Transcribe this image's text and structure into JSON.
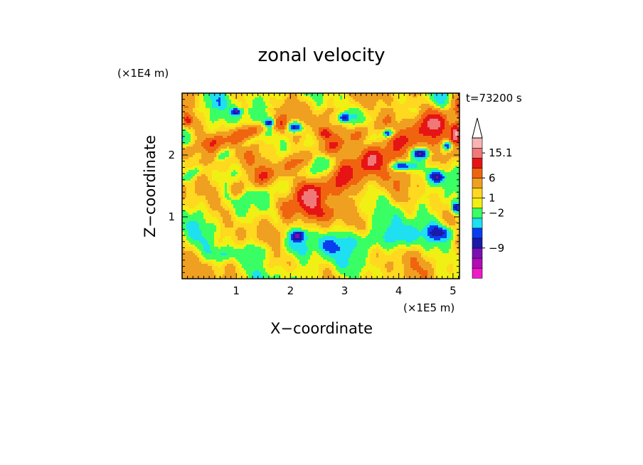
{
  "chart_data": {
    "type": "heatmap",
    "title": "zonal velocity",
    "xlabel": "X−coordinate",
    "ylabel": "Z−coordinate",
    "x_unit": "(×1E5 m)",
    "y_unit": "(×1E4 m)",
    "time_label": "t=73200 s",
    "xlim": [
      0,
      5.12
    ],
    "ylim": [
      0,
      3.0
    ],
    "x_ticks": [
      1,
      2,
      3,
      4,
      5
    ],
    "y_ticks": [
      1,
      2
    ],
    "colorbar": {
      "levels": [
        "#f019c8",
        "#b20cb4",
        "#7a10b4",
        "#1a19a8",
        "#0a3cf0",
        "#1ee0f0",
        "#39ff64",
        "#f0f014",
        "#ffd820",
        "#f0a020",
        "#f06410",
        "#e61414",
        "#f07878",
        "#f8b4b4"
      ],
      "ticks": [
        {
          "label": "15.1",
          "band": 12.5
        },
        {
          "label": "6",
          "band": 10
        },
        {
          "label": "1",
          "band": 8
        },
        {
          "label": "−2",
          "band": 6.5
        },
        {
          "label": "−9",
          "band": 3
        }
      ],
      "extend": "max"
    },
    "features": [
      {
        "type": "band",
        "x0": 2.0,
        "z0": 1.15,
        "x1": 5.1,
        "z1": 2.75,
        "width": 0.22,
        "value": 9
      },
      {
        "type": "band",
        "x0": 1.0,
        "z0": 1.45,
        "x1": 3.8,
        "z1": 2.55,
        "width": 0.14,
        "value": 5
      },
      {
        "type": "band",
        "x0": 0.0,
        "z0": 2.05,
        "x1": 1.8,
        "z1": 2.5,
        "width": 0.12,
        "value": 5
      },
      {
        "type": "band",
        "x0": 1.3,
        "z0": 0.45,
        "x1": 5.1,
        "z1": 0.75,
        "width": 0.18,
        "value": -3
      },
      {
        "type": "band",
        "x0": 0.0,
        "z0": 1.6,
        "x1": 1.6,
        "z1": 2.4,
        "width": 0.08,
        "value": -3
      },
      {
        "type": "blob",
        "x": 2.08,
        "z": 2.45,
        "rx": 0.14,
        "rz": 0.09,
        "value": -8
      },
      {
        "type": "blob",
        "x": 1.62,
        "z": 2.52,
        "rx": 0.1,
        "rz": 0.06,
        "value": -7
      },
      {
        "type": "blob",
        "x": 2.98,
        "z": 2.6,
        "rx": 0.11,
        "rz": 0.08,
        "value": -7
      },
      {
        "type": "blob",
        "x": 4.05,
        "z": 1.82,
        "rx": 0.22,
        "rz": 0.08,
        "value": -7
      },
      {
        "type": "blob",
        "x": 4.4,
        "z": 2.03,
        "rx": 0.17,
        "rz": 0.08,
        "value": -7
      },
      {
        "type": "blob",
        "x": 4.72,
        "z": 1.65,
        "rx": 0.15,
        "rz": 0.1,
        "value": -7
      },
      {
        "type": "blob",
        "x": 4.9,
        "z": 2.15,
        "rx": 0.1,
        "rz": 0.08,
        "value": -7
      },
      {
        "type": "blob",
        "x": 5.05,
        "z": 1.15,
        "rx": 0.07,
        "rz": 0.09,
        "value": -7
      },
      {
        "type": "blob",
        "x": 3.8,
        "z": 2.35,
        "rx": 0.1,
        "rz": 0.06,
        "value": -6
      },
      {
        "type": "blob",
        "x": 2.15,
        "z": 0.7,
        "rx": 0.13,
        "rz": 0.09,
        "value": -7
      },
      {
        "type": "blob",
        "x": 1.0,
        "z": 2.7,
        "rx": 0.08,
        "rz": 0.05,
        "value": -6
      },
      {
        "type": "blob",
        "x": 0.1,
        "z": 2.55,
        "rx": 0.08,
        "rz": 0.1,
        "value": 6
      },
      {
        "type": "blob",
        "x": 5.05,
        "z": 2.35,
        "rx": 0.1,
        "rz": 0.15,
        "value": 11
      },
      {
        "type": "blob",
        "x": 2.65,
        "z": 2.35,
        "rx": 0.12,
        "rz": 0.08,
        "value": 6
      },
      {
        "type": "blob",
        "x": 0.5,
        "z": 1.9,
        "rx": 0.25,
        "rz": 0.12,
        "value": 3
      },
      {
        "type": "blob",
        "x": 2.6,
        "z": 1.05,
        "rx": 0.3,
        "rz": 0.12,
        "value": 3
      },
      {
        "type": "blob",
        "x": 0.8,
        "z": 0.4,
        "rx": 0.3,
        "rz": 0.12,
        "value": -3
      },
      {
        "type": "blob",
        "x": 4.8,
        "z": 0.75,
        "rx": 0.25,
        "rz": 0.1,
        "value": -3
      }
    ]
  }
}
